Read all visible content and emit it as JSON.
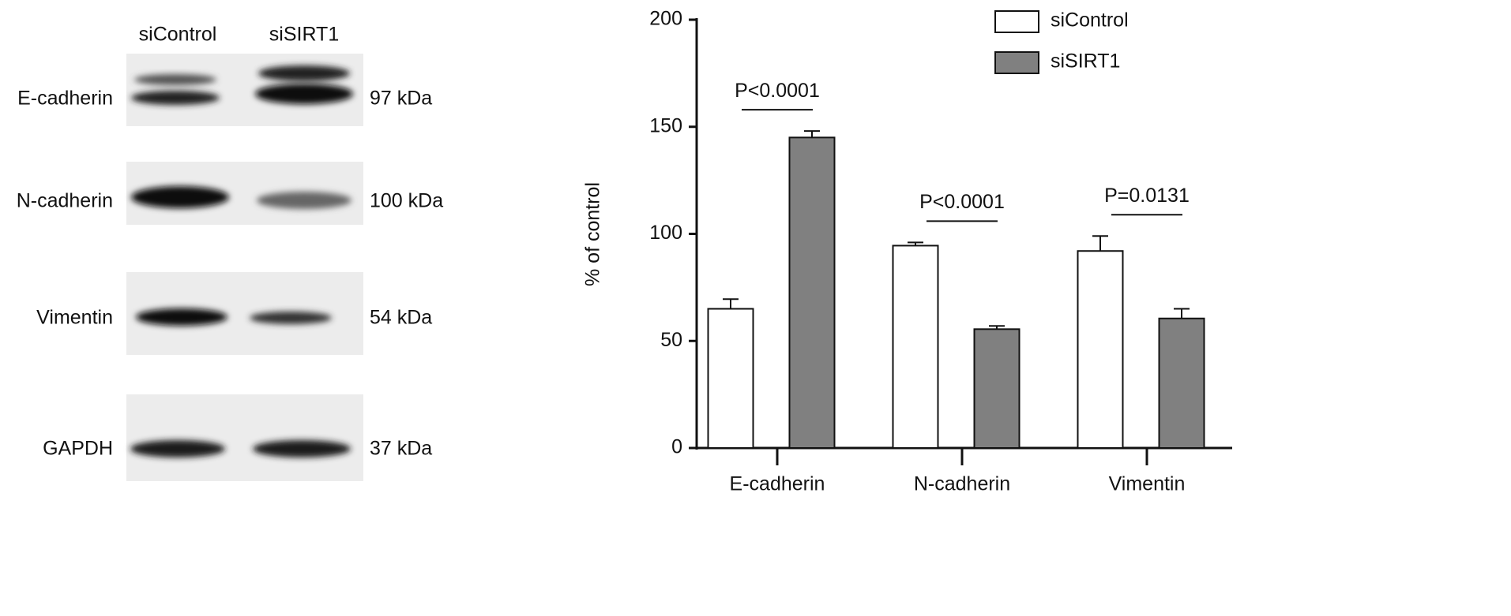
{
  "blot": {
    "lanes": [
      "siControl",
      "siSIRT1"
    ],
    "rows": [
      {
        "label": "E-cadherin",
        "size": "97 kDa"
      },
      {
        "label": "N-cadherin",
        "size": "100 kDa"
      },
      {
        "label": "Vimentin",
        "size": "54 kDa"
      },
      {
        "label": "GAPDH",
        "size": "37 kDa"
      }
    ]
  },
  "chart_data": {
    "type": "bar",
    "y_label": "% of control",
    "categories": [
      "E-cadherin",
      "N-cadherin",
      "Vimentin"
    ],
    "series": [
      {
        "name": "siControl",
        "color": "#ffffff",
        "values": [
          65,
          94.5,
          92
        ],
        "errors": [
          4.5,
          1.5,
          7
        ]
      },
      {
        "name": "siSIRT1",
        "color": "#808080",
        "values": [
          145,
          55.5,
          60.5
        ],
        "errors": [
          3,
          1.5,
          4.5
        ]
      }
    ],
    "significance": [
      "P<0.0001",
      "P<0.0001",
      "P=0.0131"
    ],
    "ylim": [
      0,
      200
    ],
    "yticks": [
      0,
      50,
      100,
      150,
      200
    ],
    "legend": "upper right"
  }
}
